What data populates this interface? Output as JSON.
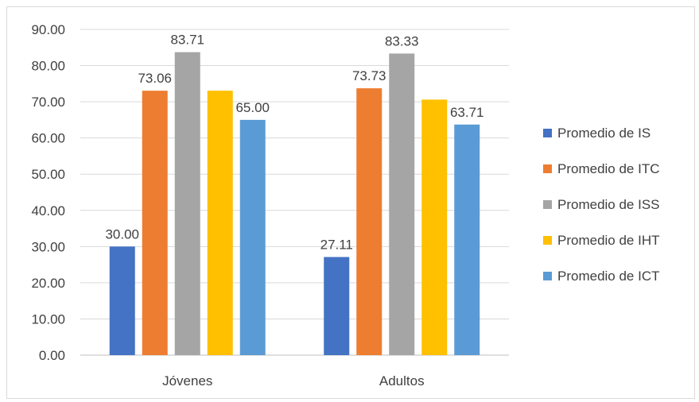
{
  "chart_data": {
    "type": "bar",
    "categories": [
      "Jóvenes",
      "Adultos"
    ],
    "series": [
      {
        "name": "Promedio de IS",
        "values": [
          30.0,
          27.11
        ],
        "color": "#4472c4"
      },
      {
        "name": "Promedio de ITC",
        "values": [
          73.06,
          73.73
        ],
        "color": "#ed7d31"
      },
      {
        "name": "Promedio de ISS",
        "values": [
          83.71,
          83.33
        ],
        "color": "#a5a5a5"
      },
      {
        "name": "Promedio de IHT",
        "values": [
          73.06,
          70.6
        ],
        "color": "#ffc000"
      },
      {
        "name": "Promedio de ICT",
        "values": [
          65.0,
          63.71
        ],
        "color": "#5b9bd5"
      }
    ],
    "data_labels": [
      [
        "30.00",
        "27.11"
      ],
      [
        "73.06",
        "73.73"
      ],
      [
        "83.71",
        "83.33"
      ],
      [
        "",
        ""
      ],
      [
        "65.00",
        "63.71"
      ]
    ],
    "y_ticks": [
      "0.00",
      "10.00",
      "20.00",
      "30.00",
      "40.00",
      "50.00",
      "60.00",
      "70.00",
      "80.00",
      "90.00"
    ],
    "ylim": [
      0,
      90
    ],
    "grid": true,
    "legend_position": "right",
    "title": "",
    "xlabel": "",
    "ylabel": ""
  }
}
